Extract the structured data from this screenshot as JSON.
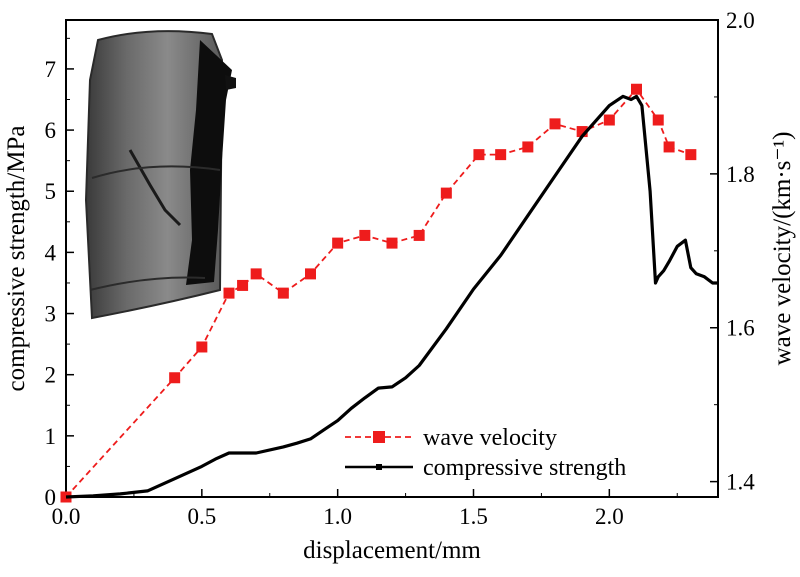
{
  "chart_data": {
    "type": "line",
    "title": "",
    "xlabel": "displacement/mm",
    "ylabel_left": "compressive strength/MPa",
    "ylabel_right": "wave velocity/(km·s⁻¹)",
    "xlim": [
      0.0,
      2.4
    ],
    "ylim_left": [
      0,
      7.8
    ],
    "ylim_right": [
      1.38,
      2.0
    ],
    "x_ticks": [
      0.0,
      0.5,
      1.0,
      1.5,
      2.0
    ],
    "x_tick_labels": [
      "0.0",
      "0.5",
      "1.0",
      "1.5",
      "2.0"
    ],
    "y_left_ticks": [
      0,
      1,
      2,
      3,
      4,
      5,
      6,
      7
    ],
    "y_left_tick_labels": [
      "0",
      "1",
      "2",
      "3",
      "4",
      "5",
      "6",
      "7"
    ],
    "y_right_ticks": [
      1.4,
      1.6,
      1.8,
      2.0
    ],
    "y_right_tick_labels": [
      "1.4",
      "1.6",
      "1.8",
      "2.0"
    ],
    "legend_position": "lower-right",
    "series": [
      {
        "name": "wave velocity",
        "axis": "right",
        "style": "dashed-square-markers",
        "color": "#ee1c1c",
        "x": [
          0.0,
          0.4,
          0.5,
          0.6,
          0.65,
          0.7,
          0.8,
          0.9,
          1.0,
          1.1,
          1.2,
          1.3,
          1.4,
          1.52,
          1.6,
          1.7,
          1.8,
          1.9,
          2.0,
          2.1,
          2.18,
          2.22,
          2.3
        ],
        "values": [
          1.38,
          1.535,
          1.575,
          1.645,
          1.655,
          1.67,
          1.645,
          1.67,
          1.71,
          1.72,
          1.71,
          1.72,
          1.775,
          1.825,
          1.825,
          1.835,
          1.865,
          1.855,
          1.87,
          1.91,
          1.87,
          1.835,
          1.825
        ]
      },
      {
        "name": "compressive strength",
        "axis": "left",
        "style": "solid",
        "color": "#000000",
        "x": [
          0.0,
          0.1,
          0.2,
          0.3,
          0.4,
          0.5,
          0.55,
          0.6,
          0.7,
          0.8,
          0.85,
          0.9,
          0.95,
          1.0,
          1.05,
          1.1,
          1.15,
          1.2,
          1.25,
          1.3,
          1.4,
          1.5,
          1.6,
          1.7,
          1.8,
          1.9,
          2.0,
          2.05,
          2.08,
          2.1,
          2.12,
          2.15,
          2.17,
          2.18,
          2.19,
          2.2,
          2.22,
          2.25,
          2.28,
          2.3,
          2.32,
          2.35,
          2.38,
          2.4
        ],
        "values": [
          0.0,
          0.02,
          0.05,
          0.1,
          0.3,
          0.5,
          0.62,
          0.72,
          0.72,
          0.82,
          0.88,
          0.95,
          1.1,
          1.25,
          1.45,
          1.62,
          1.78,
          1.8,
          1.95,
          2.15,
          2.75,
          3.4,
          3.95,
          4.6,
          5.25,
          5.9,
          6.4,
          6.55,
          6.5,
          6.55,
          6.4,
          5.0,
          3.5,
          3.6,
          3.65,
          3.7,
          3.85,
          4.1,
          4.2,
          3.75,
          3.65,
          3.6,
          3.5,
          3.5
        ]
      }
    ],
    "inset_image": "photo of cracked cylindrical rock specimen"
  }
}
